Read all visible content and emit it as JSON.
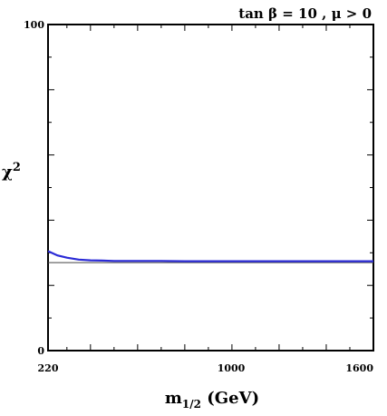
{
  "chart_data": {
    "type": "line",
    "title": "tan β = 10 ,  μ > 0",
    "xlabel": "m",
    "xlabel_sub": "1/2",
    "xlabel_unit": " (GeV)",
    "ylabel": "χ",
    "ylabel_sup": "2",
    "xlim": [
      220,
      1600
    ],
    "ylim": [
      0,
      100
    ],
    "x_ticks": [
      220,
      1000,
      1600
    ],
    "y_ticks": [
      0,
      100
    ],
    "grid": false,
    "series": [
      {
        "color": "#2b2bd6",
        "x": [
          220,
          260,
          300,
          350,
          400,
          450,
          500,
          600,
          700,
          800,
          900,
          1000,
          1200,
          1400,
          1600
        ],
        "y": [
          30.5,
          29.2,
          28.5,
          27.9,
          27.7,
          27.6,
          27.5,
          27.5,
          27.5,
          27.4,
          27.4,
          27.4,
          27.4,
          27.4,
          27.4
        ]
      }
    ],
    "reference_line": {
      "y": 27.0,
      "color": "#444444"
    }
  }
}
